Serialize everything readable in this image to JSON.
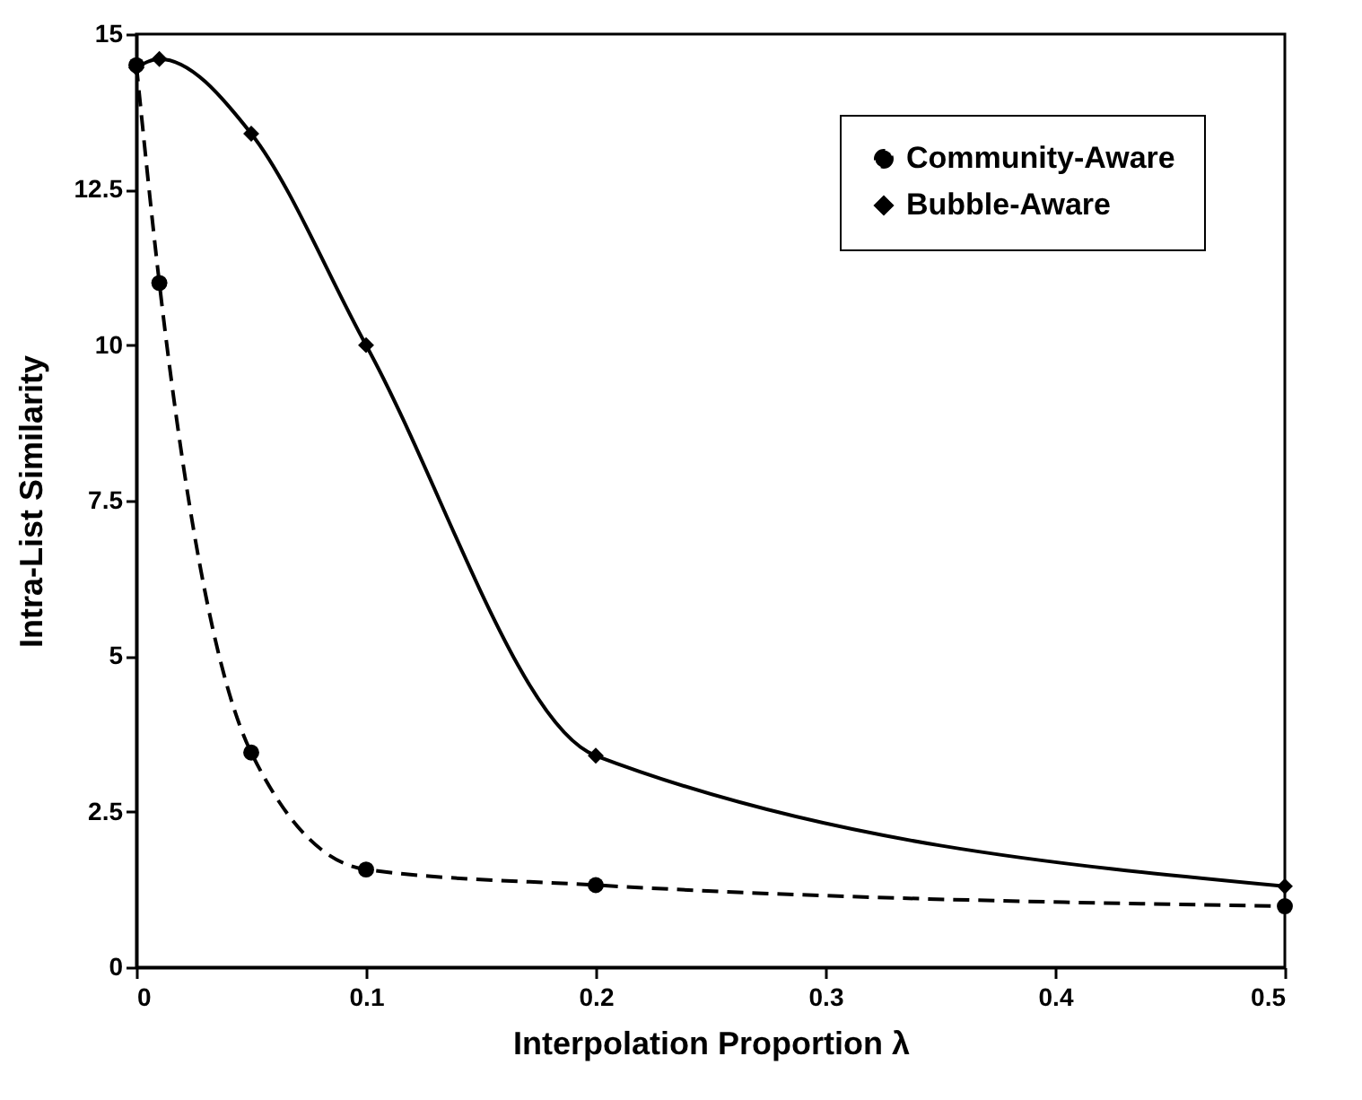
{
  "chart_data": {
    "type": "line",
    "xlabel": "Interpolation Proportion λ",
    "ylabel": "Intra-List Similarity",
    "x": [
      0,
      0.01,
      0.05,
      0.1,
      0.2,
      0.5
    ],
    "series": [
      {
        "name": "Community-Aware",
        "color": "#000000",
        "marker": "circle",
        "line_style": "dashed",
        "values": [
          14.5,
          11.0,
          3.45,
          1.57,
          1.32,
          0.98
        ]
      },
      {
        "name": "Bubble-Aware",
        "color": "#000000",
        "marker": "diamond",
        "line_style": "solid",
        "values": [
          14.46,
          14.6,
          13.4,
          10.0,
          3.4,
          1.3
        ]
      }
    ],
    "xlim": [
      0,
      0.5
    ],
    "xticks": [
      0,
      0.1,
      0.2,
      0.3,
      0.4,
      0.5
    ],
    "ylim": [
      0,
      15
    ],
    "yticks": [
      0,
      2.5,
      5,
      7.5,
      10,
      12.5,
      15
    ],
    "grid": false,
    "legend": "top right"
  }
}
